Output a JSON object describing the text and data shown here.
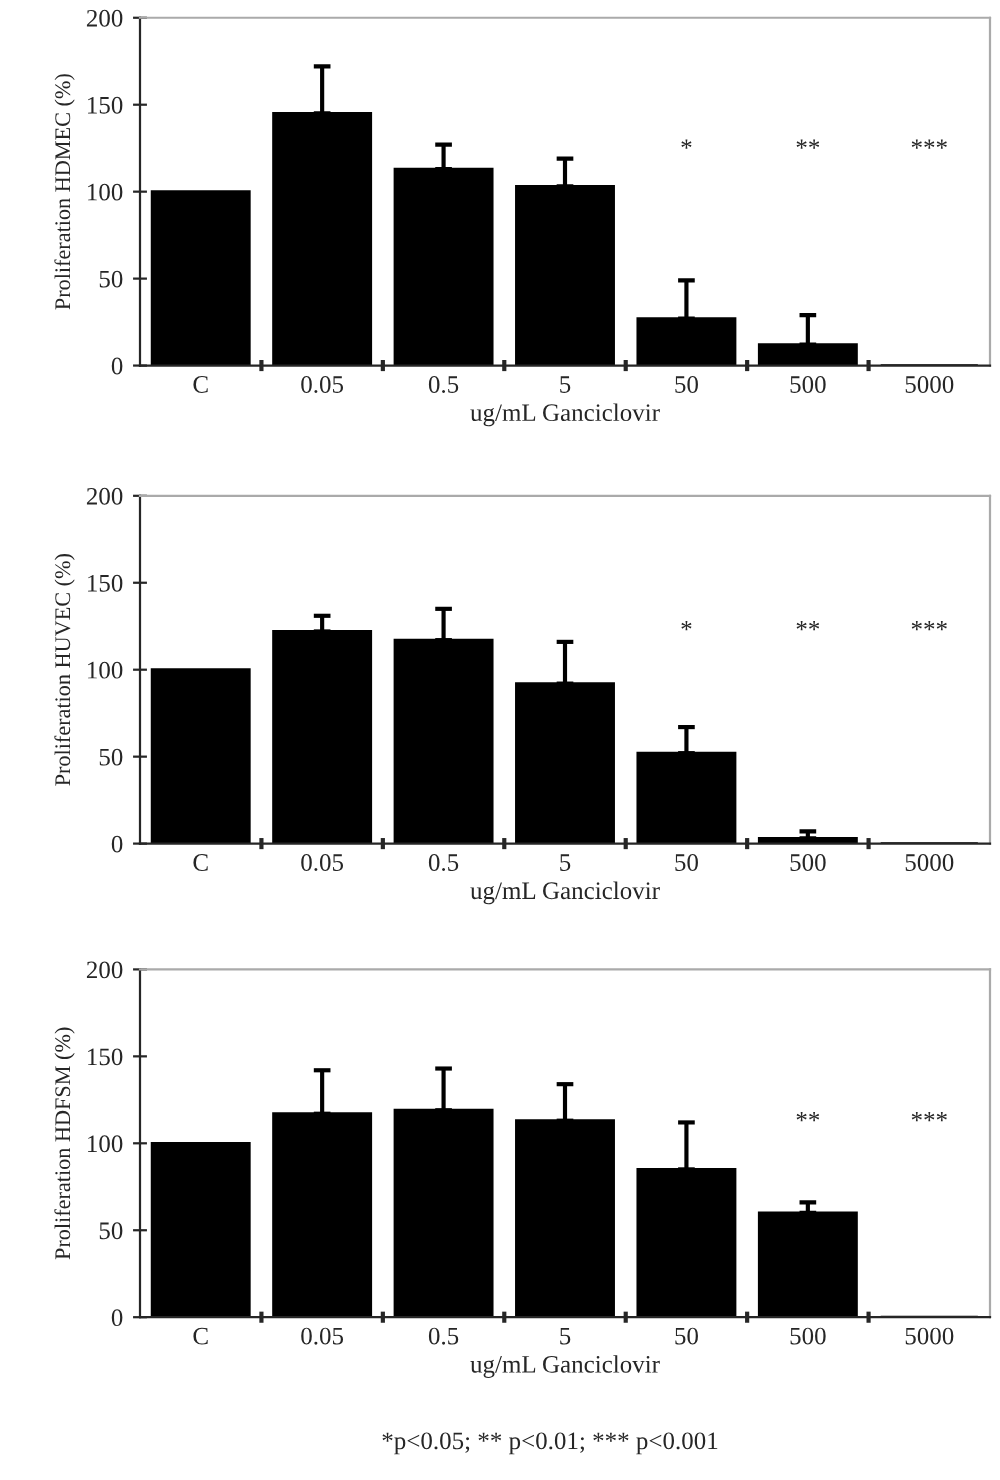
{
  "chart_data": [
    {
      "type": "bar",
      "xlabel": "ug/mL Ganciclovir",
      "ylabel": "Proliferation HDMEC (%)",
      "categories": [
        "C",
        "0.05",
        "0.5",
        "5",
        "50",
        "500",
        "5000"
      ],
      "color": "#000000",
      "values": [
        100,
        145,
        113,
        103,
        27,
        12,
        0
      ],
      "errors": [
        null,
        [
          145,
          172
        ],
        [
          113,
          127
        ],
        [
          103,
          119
        ],
        [
          27,
          49
        ],
        [
          12,
          29
        ],
        null
      ],
      "ylim": [
        0,
        200
      ],
      "yticks": [
        0,
        50,
        100,
        150,
        200
      ],
      "annotations": [
        "*",
        "**",
        "***"
      ]
    },
    {
      "type": "bar",
      "xlabel": "ug/mL Ganciclovir",
      "ylabel": "Proliferation HUVEC (%)",
      "categories": [
        "C",
        "0.05",
        "0.5",
        "5",
        "50",
        "500",
        "5000"
      ],
      "color": "#000000",
      "values": [
        100,
        122,
        117,
        92,
        52,
        3,
        0
      ],
      "errors": [
        null,
        [
          122,
          131
        ],
        [
          117,
          135
        ],
        [
          92,
          116
        ],
        [
          52,
          67
        ],
        [
          3,
          7
        ],
        null
      ],
      "ylim": [
        0,
        200
      ],
      "yticks": [
        0,
        50,
        100,
        150,
        200
      ],
      "annotations": [
        "*",
        "**",
        "***"
      ]
    },
    {
      "type": "bar",
      "xlabel": "ug/mL Ganciclovir",
      "ylabel": "Proliferation HDFSM (%)",
      "categories": [
        "C",
        "0.05",
        "0.5",
        "5",
        "50",
        "500",
        "5000"
      ],
      "color": "#000000",
      "values": [
        100,
        117,
        119,
        113,
        85,
        60,
        0
      ],
      "errors": [
        null,
        [
          117,
          142
        ],
        [
          119,
          143
        ],
        [
          113,
          134
        ],
        [
          85,
          112
        ],
        [
          60,
          66
        ],
        null
      ],
      "ylim": [
        0,
        200
      ],
      "yticks": [
        0,
        50,
        100,
        150,
        200
      ],
      "annotations": [
        "**",
        "***",
        "*p<0.05; ** p<0.01; *** p<0.001"
      ]
    }
  ]
}
